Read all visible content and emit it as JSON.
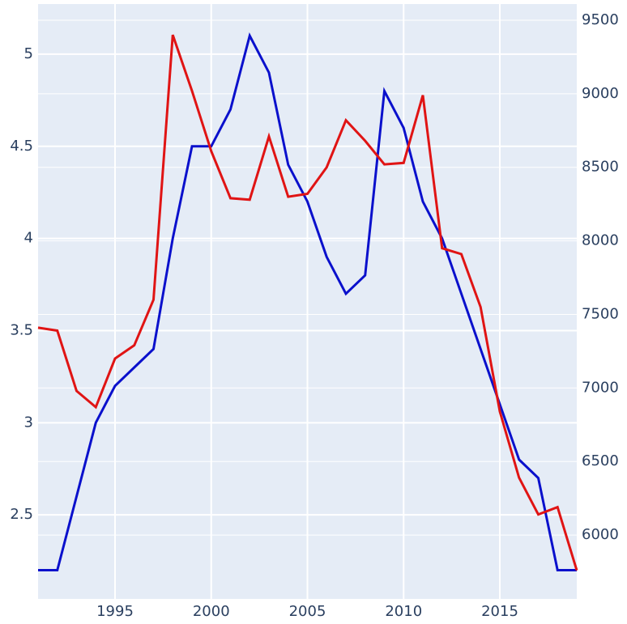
{
  "chart_data": {
    "type": "line",
    "x": [
      1991,
      1992,
      1993,
      1994,
      1995,
      1996,
      1997,
      1998,
      1999,
      2000,
      2001,
      2002,
      2003,
      2004,
      2005,
      2006,
      2007,
      2008,
      2009,
      2010,
      2011,
      2012,
      2013,
      2014,
      2015,
      2016,
      2017,
      2018,
      2019
    ],
    "series": [
      {
        "color": "#0a10cc",
        "values": [
          2.2,
          2.2,
          2.6,
          3.0,
          3.2,
          3.3,
          3.4,
          4.0,
          4.5,
          4.5,
          4.7,
          5.1,
          4.9,
          4.4,
          4.2,
          3.9,
          3.7,
          3.8,
          4.8,
          4.6,
          4.2,
          4.0,
          3.7,
          3.4,
          3.1,
          2.8,
          2.7,
          2.2,
          2.2
        ]
      },
      {
        "color": "#e01414",
        "axis": "y2",
        "values": [
          7410,
          7390,
          6980,
          6870,
          7200,
          7290,
          7600,
          9400,
          9020,
          8610,
          8290,
          8280,
          8710,
          8300,
          8320,
          8500,
          8820,
          8680,
          8520,
          8530,
          8990,
          7950,
          7910,
          7550,
          6840,
          6390,
          6140,
          6190,
          5760
        ]
      }
    ],
    "xlim": [
      1991,
      2019
    ],
    "xticks": [
      1995,
      2000,
      2005,
      2010,
      2015
    ],
    "ylim": [
      2.044,
      5.272
    ],
    "yticks": [
      2.5,
      3,
      3.5,
      4,
      4.5,
      5
    ],
    "y2lim": [
      5566,
      9610
    ],
    "y2ticks": [
      6000,
      6500,
      7000,
      7500,
      8000,
      8500,
      9000,
      9500
    ],
    "grid": true
  }
}
